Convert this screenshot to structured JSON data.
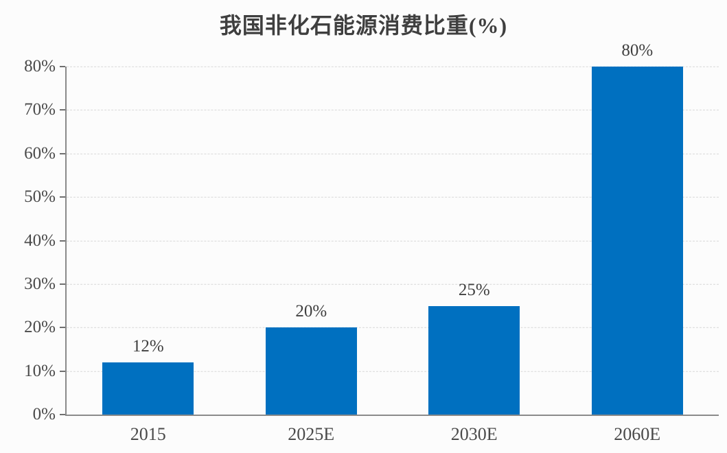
{
  "chart_data": {
    "type": "bar",
    "title": "我国非化石能源消费比重(%)",
    "categories": [
      "2015",
      "2025E",
      "2030E",
      "2060E"
    ],
    "values": [
      12,
      20,
      25,
      80
    ],
    "value_labels": [
      "12%",
      "20%",
      "25%",
      "80%"
    ],
    "ytick_labels": [
      "0%",
      "10%",
      "20%",
      "30%",
      "40%",
      "50%",
      "60%",
      "70%",
      "80%"
    ],
    "ylim": [
      0,
      80
    ],
    "ytick_step": 10,
    "xlabel": "",
    "ylabel": "",
    "legend": "none",
    "grid": "horizontal-dashed",
    "colors": {
      "bar": "#0070C0",
      "axis": "#8a8a8a",
      "tick": "#6f6f6f",
      "gridline": "#d7d7d7",
      "title_text": "#3f3f3f",
      "label_text": "#4a4a4a",
      "background": "#fcfcfc"
    }
  }
}
